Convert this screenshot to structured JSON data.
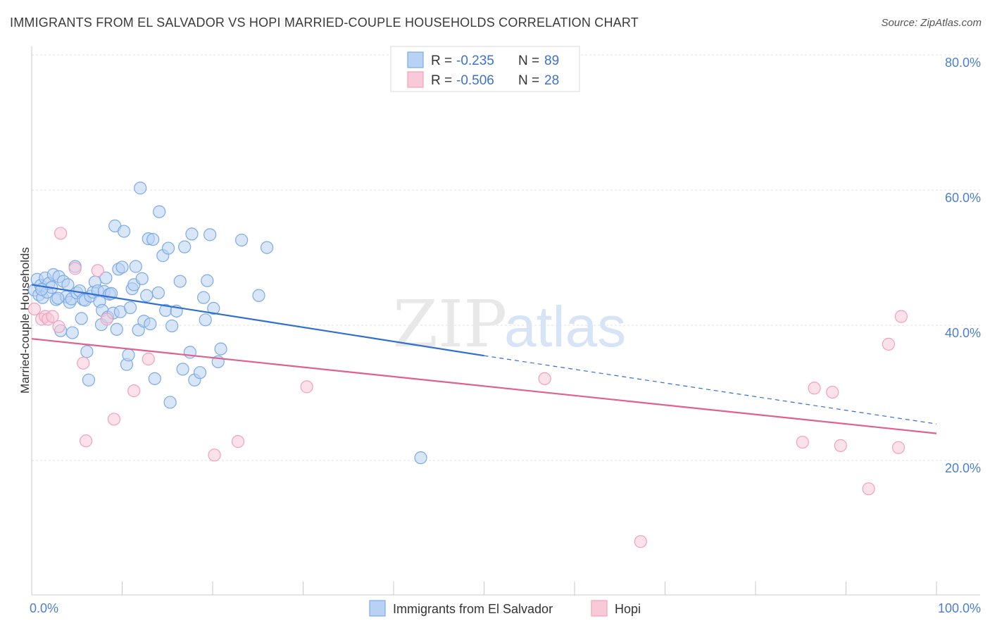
{
  "title": "IMMIGRANTS FROM EL SALVADOR VS HOPI MARRIED-COUPLE HOUSEHOLDS CORRELATION CHART",
  "source": "Source: ZipAtlas.com",
  "watermark": {
    "zip": "ZIP",
    "atlas": "atlas"
  },
  "legend_top": [
    {
      "r_label": "R =",
      "r_value": "-0.235",
      "n_label": "N =",
      "n_value": "89"
    },
    {
      "r_label": "R =",
      "r_value": "-0.506",
      "n_label": "N =",
      "n_value": "28"
    }
  ],
  "chart_data": {
    "type": "scatter",
    "xlabel": "",
    "ylabel": "Married-couple Households",
    "xlim": [
      0,
      100
    ],
    "ylim": [
      0,
      82
    ],
    "x_ticks": [
      {
        "value": 0,
        "label": "0.0%"
      },
      {
        "value": 100,
        "label": "100.0%"
      }
    ],
    "y_ticks": [
      {
        "value": 20,
        "label": "20.0%"
      },
      {
        "value": 40,
        "label": "40.0%"
      },
      {
        "value": 60,
        "label": "60.0%"
      },
      {
        "value": 80,
        "label": "80.0%"
      }
    ],
    "grid": true,
    "legend_position": "bottom-center",
    "series": [
      {
        "name": "Immigrants from El Salvador",
        "color": "#7aaae8",
        "fill": "#b9d2f3",
        "line_color": "#2f6fd0",
        "trend": {
          "x0": 0,
          "y0": 46.0,
          "x1": 50,
          "y1": 35.5,
          "dashed_to": 100,
          "dashed_y": 25.4
        },
        "points": [
          [
            0.3,
            45.2
          ],
          [
            0.6,
            46.8
          ],
          [
            0.8,
            44.5
          ],
          [
            1.0,
            45.9
          ],
          [
            1.2,
            44.1
          ],
          [
            1.5,
            47.0
          ],
          [
            1.7,
            44.9
          ],
          [
            1.9,
            46.2
          ],
          [
            2.2,
            45.6
          ],
          [
            2.4,
            47.5
          ],
          [
            2.7,
            43.8
          ],
          [
            3.0,
            47.2
          ],
          [
            3.2,
            39.2
          ],
          [
            3.5,
            46.5
          ],
          [
            3.8,
            44.2
          ],
          [
            4.0,
            46.0
          ],
          [
            4.2,
            43.4
          ],
          [
            4.4,
            43.9
          ],
          [
            4.5,
            38.9
          ],
          [
            4.8,
            48.7
          ],
          [
            5.0,
            44.8
          ],
          [
            5.3,
            45.1
          ],
          [
            5.5,
            41.0
          ],
          [
            5.7,
            43.8
          ],
          [
            5.9,
            43.7
          ],
          [
            6.1,
            36.1
          ],
          [
            6.3,
            31.9
          ],
          [
            6.5,
            44.3
          ],
          [
            6.8,
            44.9
          ],
          [
            7.0,
            46.4
          ],
          [
            7.3,
            45.1
          ],
          [
            7.5,
            43.5
          ],
          [
            7.7,
            40.1
          ],
          [
            7.8,
            42.2
          ],
          [
            8.0,
            45.0
          ],
          [
            8.2,
            47.0
          ],
          [
            8.4,
            41.2
          ],
          [
            8.6,
            44.6
          ],
          [
            8.8,
            44.7
          ],
          [
            9.0,
            41.8
          ],
          [
            9.2,
            54.7
          ],
          [
            9.4,
            39.4
          ],
          [
            9.6,
            48.3
          ],
          [
            9.8,
            42.0
          ],
          [
            10.0,
            48.6
          ],
          [
            10.2,
            53.9
          ],
          [
            10.5,
            34.2
          ],
          [
            10.7,
            35.6
          ],
          [
            10.9,
            42.6
          ],
          [
            11.1,
            45.4
          ],
          [
            11.3,
            46.0
          ],
          [
            11.5,
            48.7
          ],
          [
            11.8,
            39.3
          ],
          [
            12.0,
            60.3
          ],
          [
            12.2,
            46.9
          ],
          [
            12.4,
            40.6
          ],
          [
            12.7,
            44.4
          ],
          [
            12.9,
            52.8
          ],
          [
            13.1,
            40.2
          ],
          [
            13.4,
            52.7
          ],
          [
            13.6,
            32.1
          ],
          [
            14.0,
            44.8
          ],
          [
            14.1,
            56.8
          ],
          [
            14.5,
            50.3
          ],
          [
            14.8,
            42.2
          ],
          [
            15.1,
            51.4
          ],
          [
            15.3,
            28.6
          ],
          [
            15.5,
            39.9
          ],
          [
            16.0,
            42.1
          ],
          [
            16.4,
            46.5
          ],
          [
            16.7,
            33.5
          ],
          [
            16.9,
            51.6
          ],
          [
            17.5,
            36.0
          ],
          [
            17.7,
            53.5
          ],
          [
            18.0,
            31.9
          ],
          [
            18.6,
            33.0
          ],
          [
            19.0,
            44.1
          ],
          [
            19.2,
            40.8
          ],
          [
            19.4,
            46.6
          ],
          [
            19.7,
            53.4
          ],
          [
            20.1,
            42.5
          ],
          [
            20.6,
            34.6
          ],
          [
            20.9,
            36.5
          ],
          [
            23.2,
            52.6
          ],
          [
            25.1,
            44.4
          ],
          [
            26.0,
            51.5
          ],
          [
            43.0,
            20.4
          ],
          [
            1.1,
            45.3
          ],
          [
            2.9,
            44.0
          ]
        ]
      },
      {
        "name": "Hopi",
        "color": "#f2a0bb",
        "fill": "#f8cad8",
        "line_color": "#e0608e",
        "trend": {
          "x0": 0,
          "y0": 38.0,
          "x1": 100,
          "y1": 24.0
        },
        "points": [
          [
            0.3,
            42.4
          ],
          [
            1.1,
            40.9
          ],
          [
            1.5,
            41.3
          ],
          [
            1.8,
            40.9
          ],
          [
            2.3,
            41.3
          ],
          [
            3.0,
            39.8
          ],
          [
            3.2,
            53.6
          ],
          [
            4.8,
            48.4
          ],
          [
            5.7,
            34.4
          ],
          [
            6.0,
            22.9
          ],
          [
            7.3,
            48.1
          ],
          [
            8.3,
            40.9
          ],
          [
            9.1,
            26.1
          ],
          [
            11.3,
            30.3
          ],
          [
            12.9,
            35.0
          ],
          [
            20.2,
            20.8
          ],
          [
            22.8,
            22.8
          ],
          [
            30.4,
            30.9
          ],
          [
            56.7,
            32.1
          ],
          [
            67.3,
            8.0
          ],
          [
            85.2,
            22.7
          ],
          [
            86.5,
            30.7
          ],
          [
            88.5,
            30.1
          ],
          [
            89.4,
            22.2
          ],
          [
            92.5,
            15.8
          ],
          [
            94.7,
            37.2
          ],
          [
            95.8,
            21.9
          ],
          [
            96.1,
            41.3
          ]
        ]
      }
    ]
  }
}
